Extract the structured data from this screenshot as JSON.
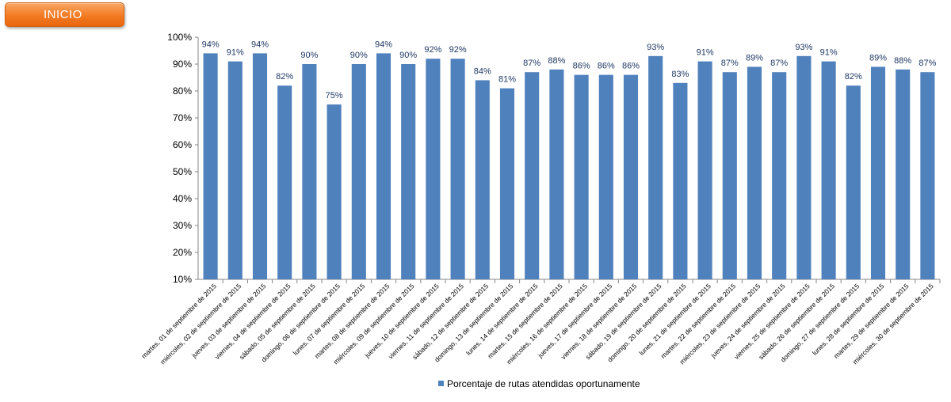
{
  "button": {
    "label": "INICIO"
  },
  "colors": {
    "bar": "#4f81bd",
    "button": "#f37a22",
    "data_label": "#1f3864"
  },
  "chart_data": {
    "type": "bar",
    "title": "",
    "xlabel": "",
    "ylabel": "",
    "ylim": [
      10,
      100
    ],
    "yticks": [
      "10%",
      "20%",
      "30%",
      "40%",
      "50%",
      "60%",
      "70%",
      "80%",
      "90%",
      "100%"
    ],
    "ytick_values": [
      10,
      20,
      30,
      40,
      50,
      60,
      70,
      80,
      90,
      100
    ],
    "grid": false,
    "legend_position": "bottom",
    "categories": [
      "martes, 01 de septiembre de 2015",
      "miércoles, 02 de septiembre de 2015",
      "jueves, 03 de septiembre de 2015",
      "viernes, 04 de septiembre de 2015",
      "sábado, 05 de septiembre de 2015",
      "domingo, 06 de septiembre de 2015",
      "lunes, 07 de septiembre de 2015",
      "martes, 08 de septiembre de 2015",
      "miércoles, 09 de septiembre de 2015",
      "jueves, 10 de septiembre de 2015",
      "viernes, 11 de septiembre de 2015",
      "sábado, 12 de septiembre de 2015",
      "domingo, 13 de septiembre de 2015",
      "lunes, 14 de septiembre de 2015",
      "martes, 15 de septiembre de 2015",
      "miércoles, 16 de septiembre de 2015",
      "jueves, 17 de septiembre de 2015",
      "viernes, 18 de septiembre de 2015",
      "sábado, 19 de septiembre de 2015",
      "domingo, 20 de septiembre de 2015",
      "lunes, 21 de septiembre de 2015",
      "martes, 22 de septiembre de 2015",
      "miércoles, 23 de septiembre de 2015",
      "jueves, 24 de septiembre de 2015",
      "viernes, 25 de septiembre de 2015",
      "sábado, 26 de septiembre de 2015",
      "domingo, 27 de septiembre de 2015",
      "lunes, 28 de septiembre de 2015",
      "martes, 29 de septiembre de 2015",
      "miércoles, 30 de septiembre de 2015"
    ],
    "series": [
      {
        "name": "Porcentaje de rutas atendidas oportunamente",
        "values": [
          94,
          91,
          94,
          82,
          90,
          75,
          90,
          94,
          90,
          92,
          92,
          84,
          81,
          87,
          88,
          86,
          86,
          86,
          93,
          83,
          91,
          87,
          89,
          87,
          93,
          91,
          82,
          89,
          88,
          87
        ],
        "labels": [
          "94%",
          "91%",
          "94%",
          "82%",
          "90%",
          "75%",
          "90%",
          "94%",
          "90%",
          "92%",
          "92%",
          "84%",
          "81%",
          "87%",
          "88%",
          "86%",
          "86%",
          "86%",
          "93%",
          "83%",
          "91%",
          "87%",
          "89%",
          "87%",
          "93%",
          "91%",
          "82%",
          "89%",
          "88%",
          "87%"
        ]
      }
    ]
  }
}
